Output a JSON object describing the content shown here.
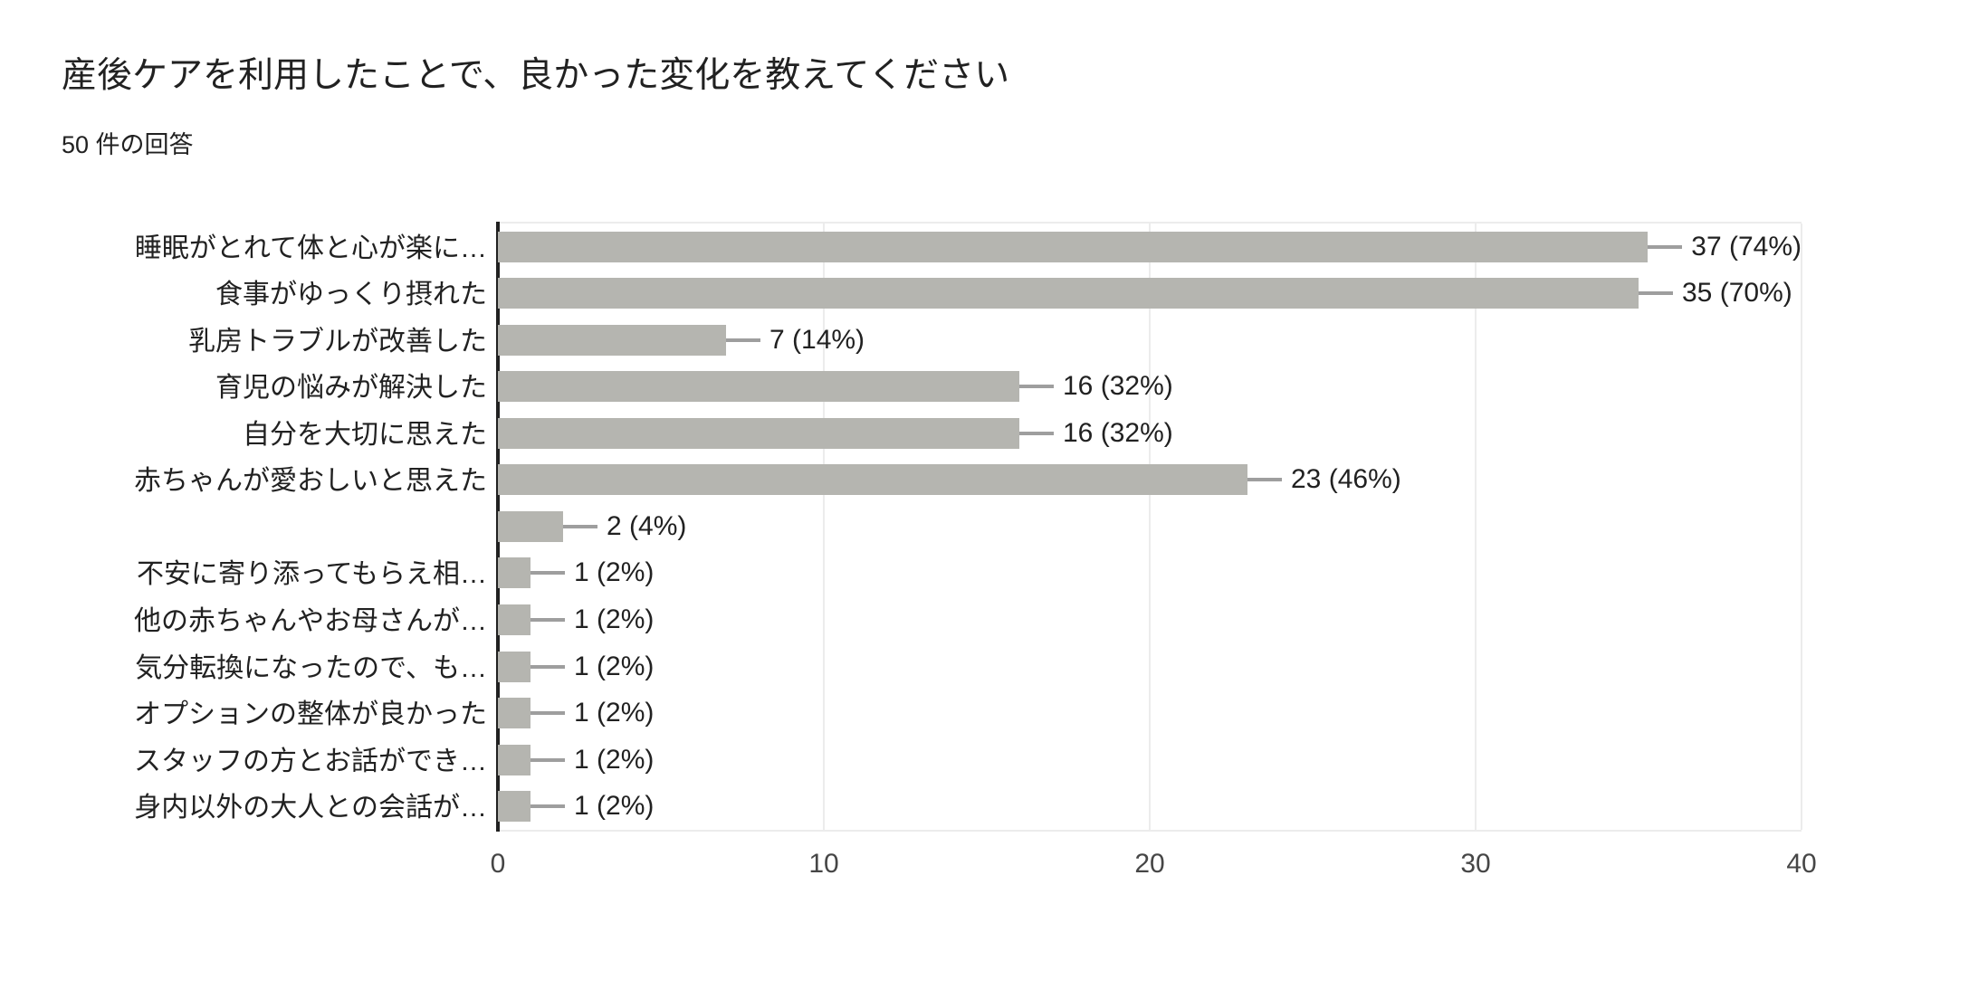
{
  "header": {
    "title": "産後ケアを利用したことで、良かった変化を教えてください",
    "subtitle": "50 件の回答"
  },
  "chart_data": {
    "type": "bar",
    "orientation": "horizontal",
    "title": "産後ケアを利用したことで、良かった変化を教えてください",
    "subtitle": "50 件の回答",
    "total_responses": 50,
    "categories": [
      "睡眠がとれて体と心が楽に…",
      "食事がゆっくり摂れた",
      "乳房トラブルが改善した",
      "育児の悩みが解決した",
      "自分を大切に思えた",
      "赤ちゃんが愛おしいと思えた",
      "",
      "不安に寄り添ってもらえ相…",
      "他の赤ちゃんやお母さんが…",
      "気分転換になったので、も…",
      "オプションの整体が良かった",
      "スタッフの方とお話ができ…",
      "身内以外の大人との会話が…"
    ],
    "values": [
      37,
      35,
      7,
      16,
      16,
      23,
      2,
      1,
      1,
      1,
      1,
      1,
      1
    ],
    "value_labels": [
      "37 (74%)",
      "35 (70%)",
      "7 (14%)",
      "16 (32%)",
      "16 (32%)",
      "23 (46%)",
      "2 (4%)",
      "1 (2%)",
      "1 (2%)",
      "1 (2%)",
      "1 (2%)",
      "1 (2%)",
      "1 (2%)"
    ],
    "xlabel": "",
    "ylabel": "",
    "xlim": [
      0,
      40
    ],
    "x_ticks": [
      "0",
      "10",
      "20",
      "30",
      "40"
    ],
    "x_tick_values": [
      0,
      10,
      20,
      30,
      40
    ],
    "grid": true,
    "legend": "none",
    "colors": {
      "bar": "#b5b5b0",
      "axis_line": "#212121",
      "gridline": "#ececec",
      "leader_line": "#9e9e9e",
      "text": "#212121",
      "tick_text": "#464646"
    }
  }
}
